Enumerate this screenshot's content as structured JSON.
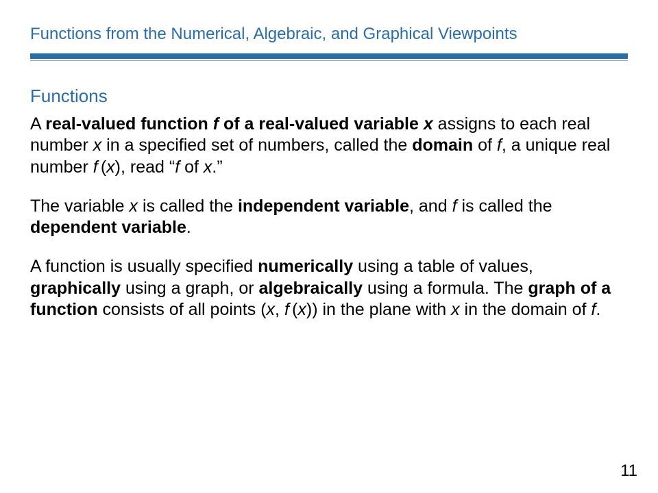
{
  "colors": {
    "accent": "#2a6da6",
    "rule_thin": "#8aa8c2",
    "background": "#ffffff",
    "text": "#000000"
  },
  "typography": {
    "title_fontsize": 24,
    "subhead_fontsize": 26,
    "body_fontsize": 25,
    "pagenum_fontsize": 24,
    "font_family": "Arial"
  },
  "title": "Functions from the Numerical, Algebraic, and Graphical Viewpoints",
  "subhead": "Functions",
  "p1": {
    "t0": "A ",
    "t1": "real-valued function ",
    "t2": "f",
    "t3": " of a real-valued variable ",
    "t4": "x",
    "t5": " assigns to each real number ",
    "t6": "x",
    "t7": " in a specified set of numbers, called the ",
    "t8": "domain",
    "t9": " of ",
    "t10": "f",
    "t11": ", a unique real number ",
    "t12": "f",
    "t13": " (",
    "t14": "x",
    "t15": "), read “",
    "t16": "f",
    "t17": " of ",
    "t18": "x",
    "t19": ".”"
  },
  "p2": {
    "t0": "The variable ",
    "t1": "x",
    "t2": " is called the ",
    "t3": "independent variable",
    "t4": ", and ",
    "t5": "f",
    "t6": " is called the ",
    "t7": "dependent variable",
    "t8": "."
  },
  "p3": {
    "t0": "A function is usually specified ",
    "t1": "numerically",
    "t2": " using a table of values, ",
    "t3": "graphically",
    "t4": " using a graph, or ",
    "t5": "algebraically",
    "t6": " using a formula. The ",
    "t7": "graph of a function",
    "t8": " consists of all points (",
    "t9": "x",
    "t10": ", ",
    "t11": "f",
    "t12": " (",
    "t13": "x",
    "t14": ")) in the plane with ",
    "t15": "x",
    "t16": " in the domain of ",
    "t17": "f",
    "t18": "."
  },
  "page_number": "11"
}
